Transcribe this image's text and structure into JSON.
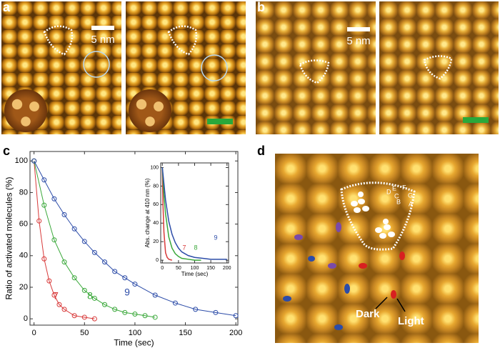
{
  "panels": {
    "a": {
      "label": "a",
      "scale_label": "5 nm"
    },
    "b": {
      "label": "b",
      "scale_label": "5 nm"
    },
    "c": {
      "label": "c"
    },
    "d": {
      "label": "d",
      "site_labels": [
        "A",
        "B",
        "C",
        "D",
        "E",
        "F",
        "G"
      ],
      "dark": "Dark",
      "light": "Light"
    }
  },
  "chart_data": [
    {
      "type": "line",
      "markers": true,
      "x_label": "Time (sec)",
      "y_label": "Ratio of activated molecules (%)",
      "xlim": [
        -4,
        202
      ],
      "ylim": [
        -4,
        106
      ],
      "xticks": [
        0,
        50,
        100,
        150,
        200
      ],
      "yticks": [
        0,
        20,
        40,
        60,
        80,
        100
      ],
      "series": [
        {
          "name": "7",
          "color": "#d83a3a",
          "x": [
            0,
            5,
            10,
            15,
            20,
            25,
            30,
            40,
            50,
            60
          ],
          "values": [
            100,
            62,
            38,
            24,
            15,
            9,
            6,
            2,
            1,
            0
          ]
        },
        {
          "name": "8",
          "color": "#3aa83a",
          "x": [
            0,
            10,
            20,
            30,
            40,
            50,
            60,
            70,
            80,
            90,
            100,
            110,
            120
          ],
          "values": [
            100,
            72,
            50,
            36,
            26,
            18,
            13,
            9,
            6,
            4,
            3,
            2,
            1
          ]
        },
        {
          "name": "9",
          "color": "#2c4ca8",
          "x": [
            0,
            10,
            20,
            30,
            40,
            50,
            60,
            70,
            80,
            90,
            100,
            120,
            140,
            160,
            180,
            200
          ],
          "values": [
            100,
            88,
            76,
            66,
            57,
            49,
            42,
            36,
            30,
            26,
            22,
            15,
            10,
            6,
            4,
            2
          ]
        }
      ]
    },
    {
      "type": "line",
      "markers": false,
      "x_label": "Time (sec)",
      "y_label": "Abs. change at 410 nm (%)",
      "xlim": [
        -5,
        205
      ],
      "ylim": [
        -3,
        105
      ],
      "xticks": [
        0,
        50,
        100,
        150,
        200
      ],
      "yticks": [
        0,
        20,
        40,
        60,
        80,
        100
      ],
      "series": [
        {
          "name": "7",
          "color": "#d83a3a",
          "x": [
            0,
            2,
            5,
            10,
            15,
            20,
            30
          ],
          "values": [
            100,
            60,
            30,
            8,
            3,
            1,
            0
          ]
        },
        {
          "name": "8",
          "color": "#3aa83a",
          "x": [
            0,
            5,
            10,
            20,
            30,
            40,
            50,
            60,
            80,
            100,
            120
          ],
          "values": [
            100,
            70,
            50,
            25,
            13,
            7,
            4,
            2,
            1,
            0,
            0
          ]
        },
        {
          "name": "9",
          "color": "#2c4ca8",
          "x": [
            0,
            10,
            20,
            30,
            40,
            50,
            60,
            80,
            100,
            125,
            150,
            175,
            200
          ],
          "values": [
            100,
            65,
            42,
            28,
            19,
            13,
            9,
            5,
            3,
            2,
            1,
            1,
            1
          ]
        }
      ]
    }
  ]
}
